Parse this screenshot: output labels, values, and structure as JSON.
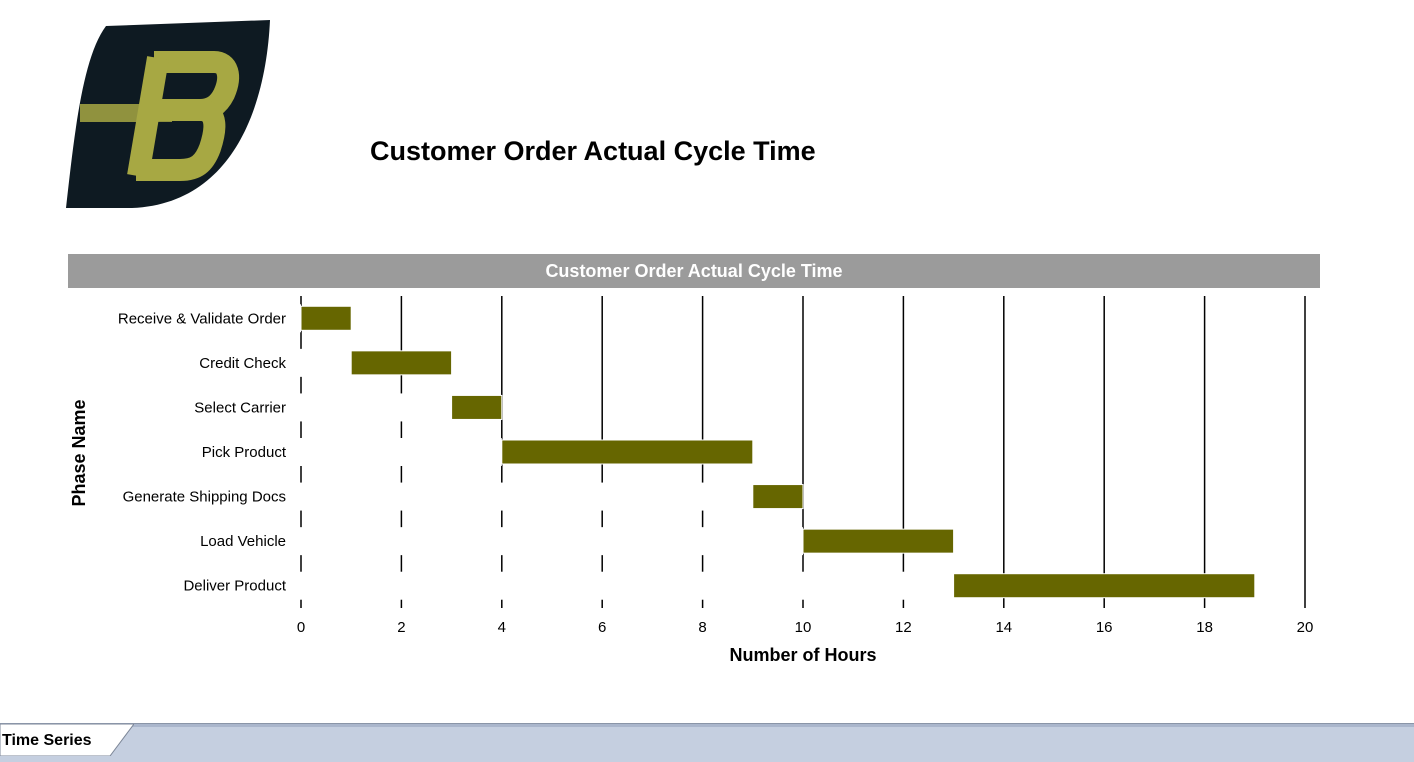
{
  "report": {
    "title": "Customer Order Actual Cycle Time"
  },
  "logo": {
    "icon": "b-letter-logo",
    "colors": {
      "background": "#0e1a22",
      "letter": "#a7a843"
    }
  },
  "chart_data": {
    "type": "gantt",
    "title": "Customer Order Actual Cycle Time",
    "xlabel": "Number of Hours",
    "ylabel": "Phase Name",
    "xlim": [
      0,
      20
    ],
    "xticks": [
      0,
      2,
      4,
      6,
      8,
      10,
      12,
      14,
      16,
      18,
      20
    ],
    "grid": true,
    "bar_color": "#666600",
    "header_color": "#9b9b9b",
    "categories": [
      "Receive & Validate Order",
      "Credit Check",
      "Select Carrier",
      "Pick Product",
      "Generate Shipping Docs",
      "Load Vehicle",
      "Deliver Product"
    ],
    "start": [
      0,
      1,
      3,
      4,
      9,
      10,
      13
    ],
    "end": [
      1,
      3,
      4,
      9,
      10,
      13,
      19
    ]
  },
  "tabs": [
    {
      "label": "Time Series",
      "active": true
    }
  ]
}
